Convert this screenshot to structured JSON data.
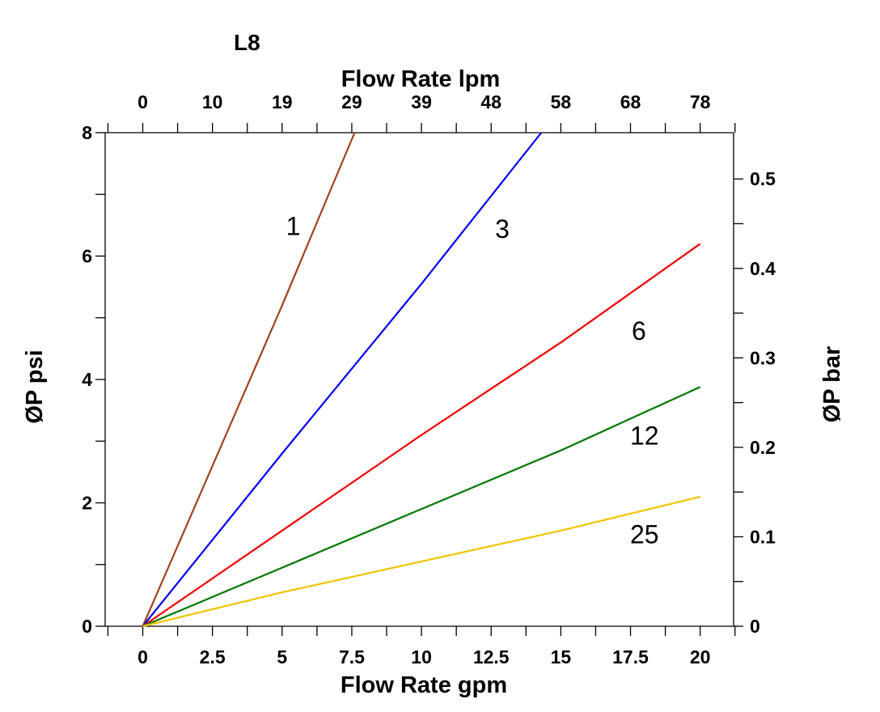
{
  "chart_data": {
    "type": "line",
    "title": "L8",
    "xlabel_bottom": "Flow Rate gpm",
    "xlabel_top": "Flow Rate lpm",
    "ylabel_left": "ØP psi",
    "ylabel_right": "ØP bar",
    "xlim": [
      -1.35,
      21.2
    ],
    "ylim": [
      0,
      8
    ],
    "x_ticks_bottom": [
      {
        "label": "0",
        "value": 0
      },
      {
        "label": "2.5",
        "value": 2.5
      },
      {
        "label": "5",
        "value": 5
      },
      {
        "label": "7.5",
        "value": 7.5
      },
      {
        "label": "10",
        "value": 10
      },
      {
        "label": "12.5",
        "value": 12.5
      },
      {
        "label": "15",
        "value": 15
      },
      {
        "label": "17.5",
        "value": 17.5
      },
      {
        "label": "20",
        "value": 20
      }
    ],
    "x_ticks_top": [
      {
        "label": "0",
        "value": 0
      },
      {
        "label": "10",
        "value": 2.5
      },
      {
        "label": "19",
        "value": 5
      },
      {
        "label": "29",
        "value": 7.5
      },
      {
        "label": "39",
        "value": 10
      },
      {
        "label": "48",
        "value": 12.5
      },
      {
        "label": "58",
        "value": 15
      },
      {
        "label": "68",
        "value": 17.5
      },
      {
        "label": "78",
        "value": 20
      }
    ],
    "y_ticks_left": [
      {
        "label": "0",
        "value": 0
      },
      {
        "label": "2",
        "value": 2
      },
      {
        "label": "4",
        "value": 4
      },
      {
        "label": "6",
        "value": 6
      },
      {
        "label": "8",
        "value": 8
      }
    ],
    "y_ticks_right": [
      {
        "label": "0",
        "value": 0
      },
      {
        "label": "0.1",
        "value": 1.45
      },
      {
        "label": "0.2",
        "value": 2.9
      },
      {
        "label": "0.3",
        "value": 4.35
      },
      {
        "label": "0.4",
        "value": 5.8
      },
      {
        "label": "0.5",
        "value": 7.25
      }
    ],
    "series": [
      {
        "name": "1",
        "color": "#a0421e",
        "x": [
          0,
          2.5,
          5,
          7.6
        ],
        "y": [
          0,
          2.6,
          5.2,
          8.0
        ],
        "label_at": [
          5.4,
          6.5
        ]
      },
      {
        "name": "3",
        "color": "#0000ee",
        "x": [
          0,
          5,
          10,
          14.3
        ],
        "y": [
          0,
          2.8,
          5.55,
          8.0
        ],
        "label_at": [
          12.9,
          6.45
        ]
      },
      {
        "name": "6",
        "color": "#ee0000",
        "x": [
          0,
          5,
          10,
          15,
          20
        ],
        "y": [
          0,
          1.55,
          3.1,
          4.6,
          6.2
        ],
        "label_at": [
          17.8,
          4.8
        ]
      },
      {
        "name": "12",
        "color": "#007700",
        "x": [
          0,
          5,
          10,
          15,
          20
        ],
        "y": [
          0,
          0.95,
          1.9,
          2.85,
          3.88
        ],
        "label_at": [
          18.0,
          3.1
        ]
      },
      {
        "name": "25",
        "color": "#f2c400",
        "x": [
          0,
          5,
          10,
          15,
          20
        ],
        "y": [
          0,
          0.55,
          1.05,
          1.55,
          2.1
        ],
        "label_at": [
          18.0,
          1.5
        ]
      }
    ]
  }
}
